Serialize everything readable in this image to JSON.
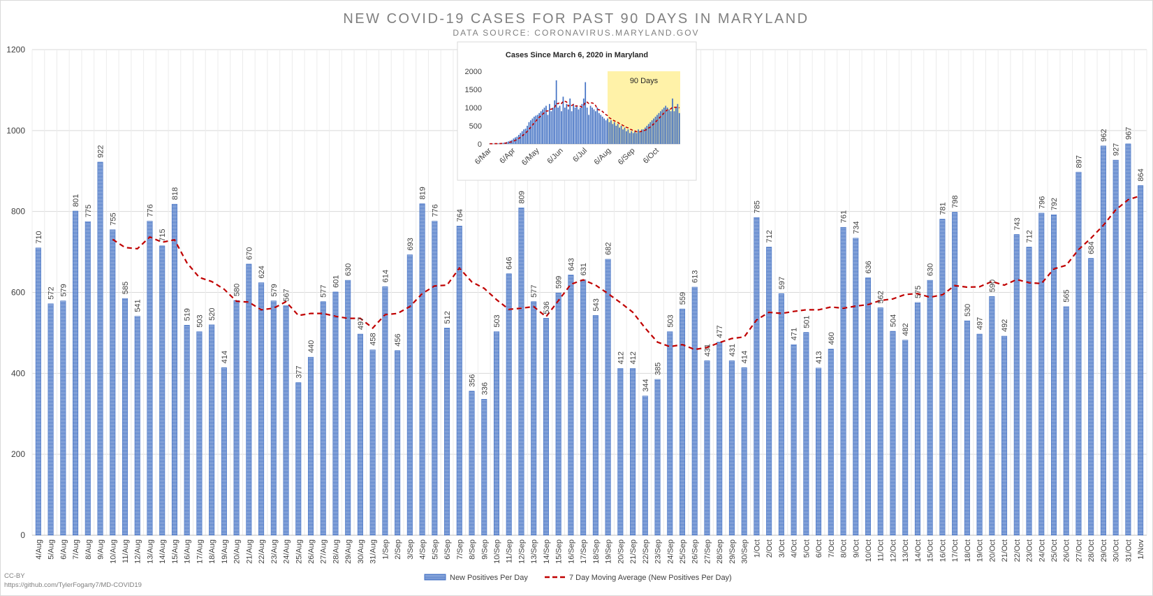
{
  "title": "NEW COVID-19 CASES FOR PAST 90 DAYS IN MARYLAND",
  "subtitle": "DATA SOURCE: CORONAVIRUS.MARYLAND.GOV",
  "credit": {
    "license": "CC-BY",
    "url": "https://github.com/TylerFogarty7/MD-COVID19"
  },
  "legend": {
    "bars": "New Positives Per Day",
    "line": "7 Day Moving Average (New Positives Per Day)"
  },
  "colors": {
    "bar": "#4472c4",
    "line": "#c00000",
    "highlight": "#fff2a8"
  },
  "chart_data": [
    {
      "type": "bar",
      "title": "NEW COVID-19 CASES FOR PAST 90 DAYS IN MARYLAND",
      "subtitle": "DATA SOURCE: CORONAVIRUS.MARYLAND.GOV",
      "ylim": [
        0,
        1200
      ],
      "yticks": [
        0,
        200,
        400,
        600,
        800,
        1000,
        1200
      ],
      "grid": true,
      "legend_position": "bottom",
      "categories": [
        "4/Aug",
        "5/Aug",
        "6/Aug",
        "7/Aug",
        "8/Aug",
        "9/Aug",
        "10/Aug",
        "11/Aug",
        "12/Aug",
        "13/Aug",
        "14/Aug",
        "15/Aug",
        "16/Aug",
        "17/Aug",
        "18/Aug",
        "19/Aug",
        "20/Aug",
        "21/Aug",
        "22/Aug",
        "23/Aug",
        "24/Aug",
        "25/Aug",
        "26/Aug",
        "27/Aug",
        "28/Aug",
        "29/Aug",
        "30/Aug",
        "31/Aug",
        "1/Sep",
        "2/Sep",
        "3/Sep",
        "4/Sep",
        "5/Sep",
        "6/Sep",
        "7/Sep",
        "8/Sep",
        "9/Sep",
        "10/Sep",
        "11/Sep",
        "12/Sep",
        "13/Sep",
        "14/Sep",
        "15/Sep",
        "16/Sep",
        "17/Sep",
        "18/Sep",
        "19/Sep",
        "20/Sep",
        "21/Sep",
        "22/Sep",
        "23/Sep",
        "24/Sep",
        "25/Sep",
        "26/Sep",
        "27/Sep",
        "28/Sep",
        "29/Sep",
        "30/Sep",
        "1/Oct",
        "2/Oct",
        "3/Oct",
        "4/Oct",
        "5/Oct",
        "6/Oct",
        "7/Oct",
        "8/Oct",
        "9/Oct",
        "10/Oct",
        "11/Oct",
        "12/Oct",
        "13/Oct",
        "14/Oct",
        "15/Oct",
        "16/Oct",
        "17/Oct",
        "18/Oct",
        "19/Oct",
        "20/Oct",
        "21/Oct",
        "22/Oct",
        "23/Oct",
        "24/Oct",
        "25/Oct",
        "26/Oct",
        "27/Oct",
        "28/Oct",
        "29/Oct",
        "30/Oct",
        "31/Oct",
        "1/Nov"
      ],
      "series": [
        {
          "name": "New Positives Per Day",
          "type": "bar",
          "values": [
            710,
            572,
            579,
            801,
            775,
            922,
            755,
            585,
            541,
            776,
            715,
            818,
            519,
            503,
            520,
            414,
            580,
            670,
            624,
            579,
            567,
            377,
            440,
            577,
            601,
            630,
            497,
            458,
            614,
            456,
            693,
            819,
            776,
            512,
            764,
            356,
            336,
            503,
            646,
            809,
            577,
            536,
            599,
            643,
            631,
            543,
            682,
            412,
            412,
            344,
            385,
            503,
            559,
            613,
            431,
            477,
            431,
            414,
            785,
            712,
            597,
            471,
            501,
            413,
            460,
            761,
            734,
            636,
            562,
            504,
            482,
            575,
            630,
            781,
            798,
            530,
            497,
            590,
            492,
            743,
            712,
            796,
            792,
            565,
            897,
            684,
            962,
            927,
            967,
            864
          ]
        },
        {
          "name": "7 Day Moving Average (New Positives Per Day)",
          "type": "line",
          "values": [
            null,
            null,
            null,
            null,
            null,
            null,
            731,
            711,
            708,
            737,
            724,
            730,
            673,
            637,
            627,
            608,
            578,
            576,
            557,
            561,
            577,
            543,
            548,
            548,
            541,
            536,
            536,
            512,
            545,
            548,
            565,
            597,
            616,
            618,
            660,
            626,
            610,
            582,
            558,
            561,
            565,
            540,
            580,
            620,
            631,
            618,
            597,
            575,
            551,
            512,
            477,
            466,
            471,
            459,
            464,
            476,
            486,
            490,
            532,
            551,
            548,
            553,
            557,
            557,
            564,
            561,
            566,
            570,
            580,
            584,
            595,
            597,
            588,
            594,
            617,
            613,
            614,
            627,
            618,
            632,
            624,
            622,
            658,
            667,
            706,
            734,
            766,
            804,
            829,
            839
          ]
        }
      ]
    },
    {
      "type": "bar",
      "title": "Cases Since March 6, 2020 in Maryland",
      "ylim": [
        0,
        2000
      ],
      "yticks": [
        0,
        500,
        1000,
        1500,
        2000
      ],
      "xticks": [
        "6/Mar",
        "6/Apr",
        "6/May",
        "6/Jun",
        "6/Jul",
        "6/Aug",
        "6/Sep",
        "6/Oct"
      ],
      "annotation": "90 Days",
      "series": [
        {
          "name": "New Positives Per Day",
          "type": "bar",
          "values": [
            5,
            8,
            6,
            12,
            10,
            15,
            20,
            25,
            30,
            40,
            55,
            70,
            90,
            110,
            150,
            180,
            200,
            250,
            300,
            350,
            400,
            420,
            500,
            600,
            650,
            700,
            750,
            780,
            800,
            850,
            900,
            950,
            1000,
            1050,
            800,
            1100,
            900,
            1000,
            1200,
            1750,
            1000,
            1050,
            900,
            1300,
            1000,
            1100,
            950,
            1250,
            900,
            1100,
            1000,
            1050,
            950,
            1000,
            1100,
            1250,
            1700,
            1000,
            800,
            1050,
            1000,
            950,
            900,
            1000,
            850,
            800,
            750,
            700,
            650,
            700,
            600,
            650,
            550,
            600,
            500,
            550,
            450,
            500,
            400,
            450,
            350,
            400,
            300,
            350,
            300,
            350,
            300,
            400,
            350,
            400,
            400,
            450,
            500,
            550,
            600,
            650,
            700,
            750,
            800,
            850,
            900,
            950,
            1000,
            1050,
            1000,
            950,
            900,
            1250,
            900,
            1000,
            1100,
            850
          ]
        }
      ]
    }
  ]
}
